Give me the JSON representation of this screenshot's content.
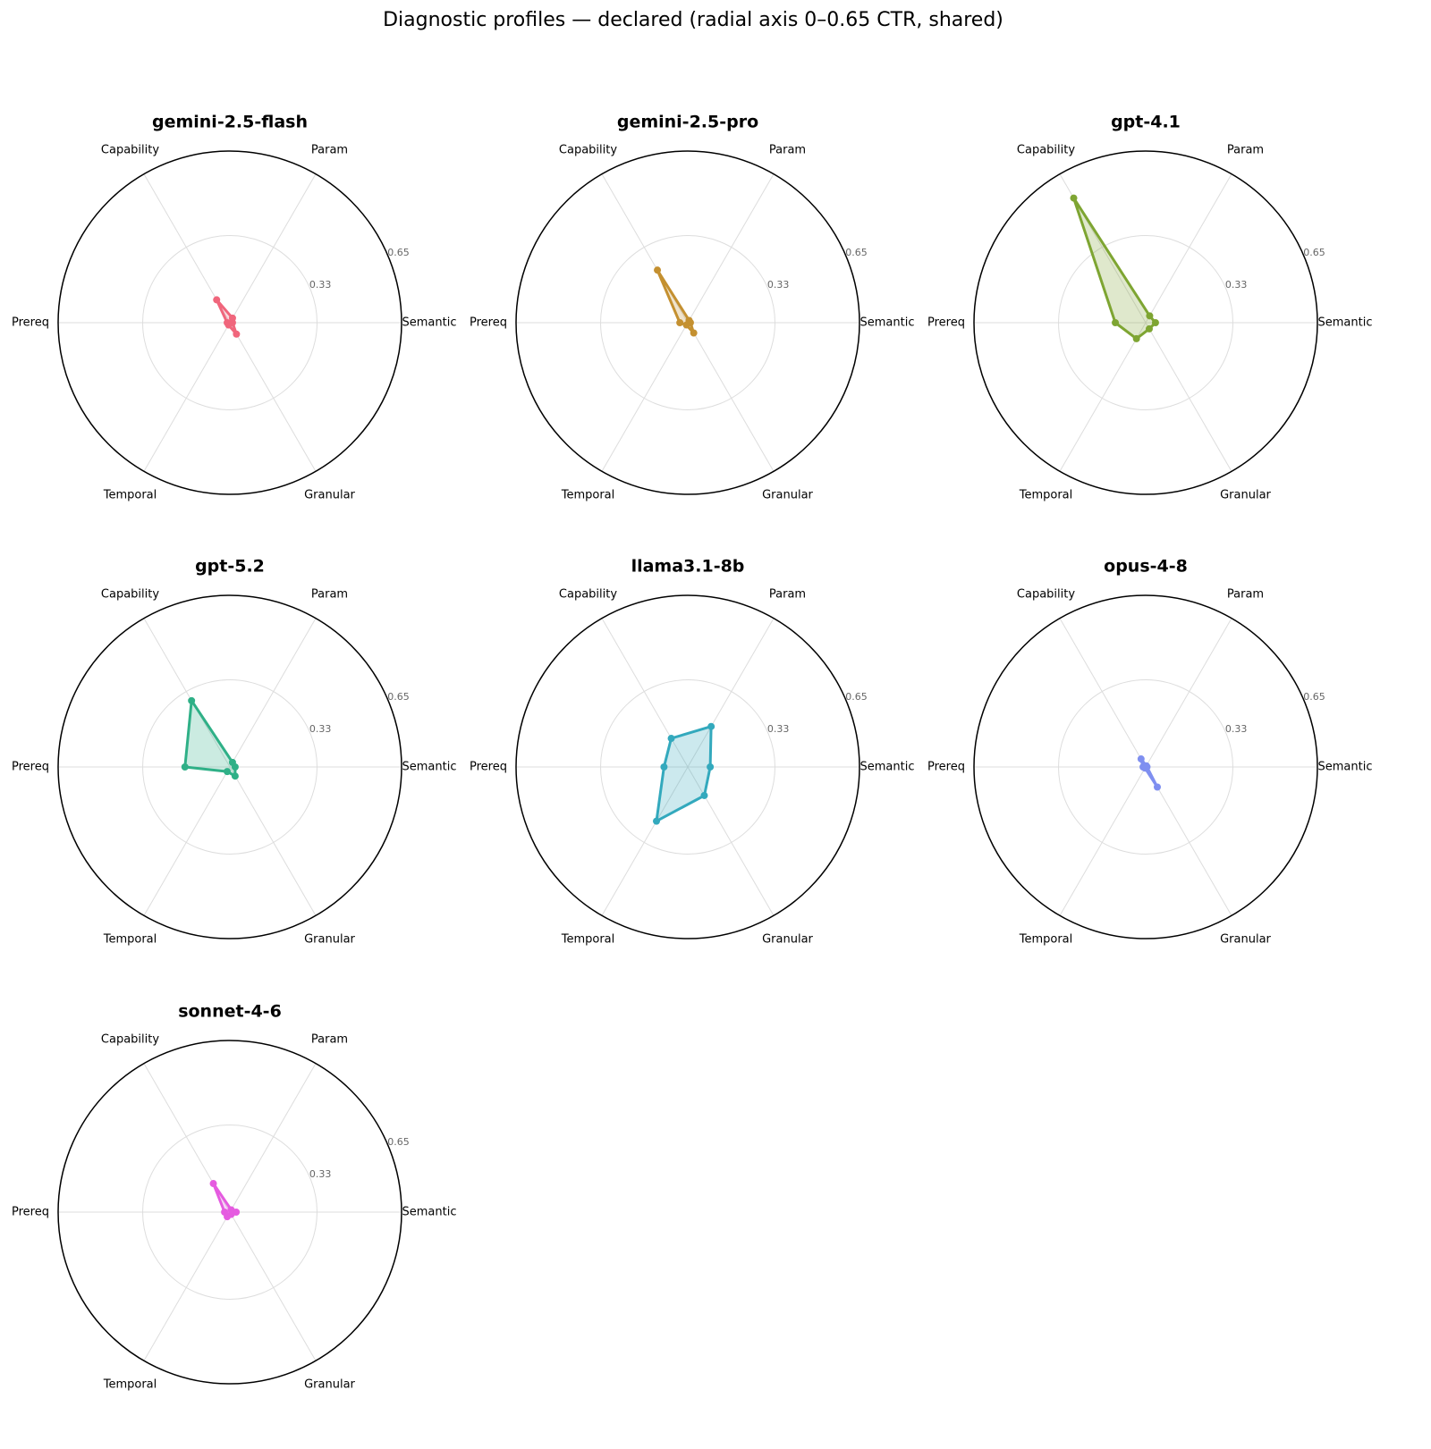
{
  "title": "Diagnostic profiles — declared  (radial axis 0–0.65 CTR, shared)",
  "chart_data": [
    {
      "type": "radar",
      "title": "gemini-2.5-flash",
      "categories": [
        "Semantic",
        "Param",
        "Capability",
        "Prereq",
        "Temporal",
        "Granular"
      ],
      "values": [
        0.01,
        0.02,
        0.1,
        0.01,
        0.01,
        0.05
      ],
      "color": "#f0667c",
      "rlim": [
        0,
        0.65
      ],
      "rticks": [
        0.33,
        0.65
      ]
    },
    {
      "type": "radar",
      "title": "gemini-2.5-pro",
      "categories": [
        "Semantic",
        "Param",
        "Capability",
        "Prereq",
        "Temporal",
        "Granular"
      ],
      "values": [
        0.01,
        0.01,
        0.23,
        0.03,
        0.01,
        0.045
      ],
      "color": "#c49030",
      "rlim": [
        0,
        0.65
      ],
      "rticks": [
        0.33,
        0.65
      ]
    },
    {
      "type": "radar",
      "title": "gpt-4.1",
      "categories": [
        "Semantic",
        "Param",
        "Capability",
        "Prereq",
        "Temporal",
        "Granular"
      ],
      "values": [
        0.037,
        0.03,
        0.545,
        0.115,
        0.07,
        0.027
      ],
      "color": "#7ea532",
      "rlim": [
        0,
        0.65
      ],
      "rticks": [
        0.33,
        0.65
      ]
    },
    {
      "type": "radar",
      "title": "gpt-5.2",
      "categories": [
        "Semantic",
        "Param",
        "Capability",
        "Prereq",
        "Temporal",
        "Granular"
      ],
      "values": [
        0.02,
        0.02,
        0.29,
        0.17,
        0.02,
        0.04
      ],
      "color": "#2fb087",
      "rlim": [
        0,
        0.65
      ],
      "rticks": [
        0.33,
        0.65
      ]
    },
    {
      "type": "radar",
      "title": "llama3.1-8b",
      "categories": [
        "Semantic",
        "Param",
        "Capability",
        "Prereq",
        "Temporal",
        "Granular"
      ],
      "values": [
        0.085,
        0.177,
        0.125,
        0.09,
        0.237,
        0.125
      ],
      "color": "#33a9bd",
      "rlim": [
        0,
        0.65
      ],
      "rticks": [
        0.33,
        0.65
      ]
    },
    {
      "type": "radar",
      "title": "opus-4-8",
      "categories": [
        "Semantic",
        "Param",
        "Capability",
        "Prereq",
        "Temporal",
        "Granular"
      ],
      "values": [
        0.005,
        0.005,
        0.035,
        0.01,
        0.005,
        0.088
      ],
      "color": "#7f8ff0",
      "rlim": [
        0,
        0.65
      ],
      "rticks": [
        0.33,
        0.65
      ]
    },
    {
      "type": "radar",
      "title": "sonnet-4-6",
      "categories": [
        "Semantic",
        "Param",
        "Capability",
        "Prereq",
        "Temporal",
        "Granular"
      ],
      "values": [
        0.024,
        0.01,
        0.125,
        0.02,
        0.02,
        0.01
      ],
      "color": "#e55be0",
      "rlim": [
        0,
        0.65
      ],
      "rticks": [
        0.33,
        0.65
      ]
    }
  ]
}
